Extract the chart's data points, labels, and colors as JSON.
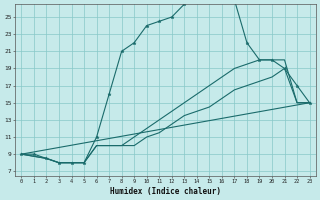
{
  "xlabel": "Humidex (Indice chaleur)",
  "bg_color": "#c6eaea",
  "grid_color": "#88c8c8",
  "line_color": "#1a6b6b",
  "xlim": [
    -0.5,
    23.5
  ],
  "ylim": [
    6.5,
    26.5
  ],
  "xticks": [
    0,
    1,
    2,
    3,
    4,
    5,
    6,
    7,
    8,
    9,
    10,
    11,
    12,
    13,
    14,
    15,
    16,
    17,
    18,
    19,
    20,
    21,
    22,
    23
  ],
  "yticks": [
    7,
    9,
    11,
    13,
    15,
    17,
    19,
    21,
    23,
    25
  ],
  "line1_x": [
    0,
    1,
    2,
    3,
    4,
    5,
    6,
    7,
    8,
    9,
    10,
    11,
    12,
    13,
    14,
    15,
    16,
    17,
    18,
    19,
    20,
    21,
    22,
    23
  ],
  "line1_y": [
    9,
    9,
    8.5,
    8,
    8,
    8,
    11,
    16,
    21,
    22,
    24,
    24.5,
    25,
    26.5,
    27,
    27,
    27,
    27,
    22,
    20,
    20,
    19,
    17,
    15
  ],
  "line2_x": [
    0,
    2,
    3,
    4,
    5,
    6,
    7,
    8,
    9,
    10,
    11,
    12,
    13,
    14,
    15,
    16,
    17,
    18,
    19,
    20,
    21,
    22,
    23
  ],
  "line2_y": [
    9,
    8.5,
    8,
    8,
    8,
    10,
    10,
    10,
    11,
    12,
    13,
    14,
    15,
    16,
    17,
    18,
    19,
    19.5,
    20,
    20,
    20,
    15,
    15
  ],
  "line3_x": [
    0,
    2,
    3,
    4,
    5,
    6,
    7,
    8,
    9,
    10,
    11,
    12,
    13,
    14,
    15,
    16,
    17,
    18,
    19,
    20,
    21,
    22,
    23
  ],
  "line3_y": [
    9,
    8.5,
    8,
    8,
    8,
    10,
    10,
    10,
    10,
    11,
    11.5,
    12.5,
    13.5,
    14,
    14.5,
    15.5,
    16.5,
    17,
    17.5,
    18,
    19,
    15,
    15
  ],
  "line4_x": [
    0,
    23
  ],
  "line4_y": [
    9,
    15
  ]
}
